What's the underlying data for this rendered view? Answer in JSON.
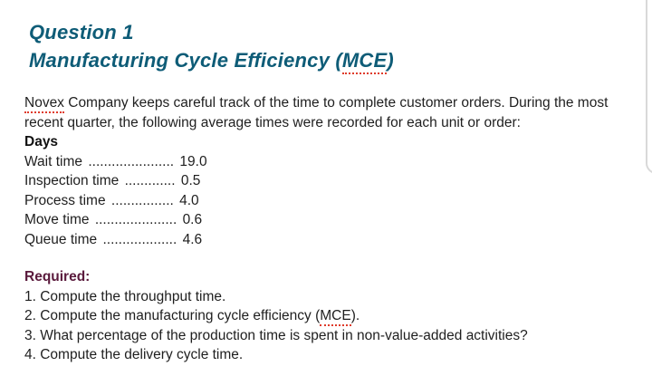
{
  "colors": {
    "title_teal": "#0e5c77",
    "required_maroon": "#5a1a3c",
    "spellcheck_red": "#df3b2a",
    "body_text": "#1f1f1f"
  },
  "title": {
    "line1": "Question 1",
    "line2_prefix": "Manufacturing Cycle Efficiency (",
    "line2_mce": "MCE",
    "line2_suffix": ")"
  },
  "intro": {
    "novex": "Novex",
    "text": " Company keeps careful track of the time to complete customer orders. During the most recent quarter, the following average times were recorded for each unit or order:",
    "days_label": "Days"
  },
  "times": [
    {
      "label": "Wait time",
      "dots": "......................",
      "value": "19.0"
    },
    {
      "label": "Inspection time",
      "dots": ".............",
      "value": "0.5"
    },
    {
      "label": "Process time",
      "dots": "................",
      "value": "4.0"
    },
    {
      "label": "Move time",
      "dots": ".....................",
      "value": "0.6"
    },
    {
      "label": "Queue time",
      "dots": "...................",
      "value": "4.6"
    }
  ],
  "required": {
    "heading": "Required:",
    "item1": "1. Compute the throughput time.",
    "item2_prefix": "2. Compute the manufacturing cycle efficiency (",
    "item2_mce": "MCE",
    "item2_suffix": ").",
    "item3": "3. What percentage of the production time is spent in non-value-added activities?",
    "item4": "4. Compute the delivery cycle time."
  }
}
